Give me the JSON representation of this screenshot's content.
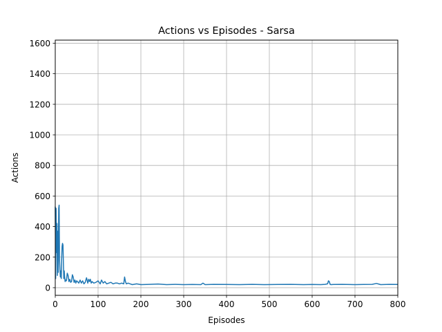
{
  "chart_data": {
    "type": "line",
    "title": "Actions vs Episodes - Sarsa",
    "xlabel": "Episodes",
    "ylabel": "Actions",
    "xlim": [
      0,
      800
    ],
    "ylim": [
      -50,
      1620
    ],
    "xticks": [
      0,
      100,
      200,
      300,
      400,
      500,
      600,
      700,
      800
    ],
    "yticks": [
      0,
      200,
      400,
      600,
      800,
      1000,
      1200,
      1400,
      1600
    ],
    "grid": true,
    "legend": "none",
    "series": [
      {
        "color": "#1f77b4",
        "x": [
          0,
          1,
          2,
          3,
          4,
          5,
          6,
          7,
          8,
          9,
          10,
          11,
          12,
          13,
          14,
          15,
          16,
          17,
          18,
          19,
          20,
          21,
          22,
          23,
          24,
          26,
          28,
          30,
          32,
          34,
          36,
          38,
          40,
          42,
          44,
          46,
          48,
          50,
          52,
          55,
          58,
          61,
          64,
          67,
          70,
          73,
          76,
          78,
          80,
          82,
          84,
          86,
          90,
          95,
          100,
          105,
          108,
          112,
          116,
          120,
          125,
          130,
          135,
          140,
          145,
          150,
          155,
          160,
          162,
          164,
          166,
          170,
          175,
          180,
          190,
          200,
          220,
          240,
          260,
          280,
          300,
          320,
          340,
          345,
          350,
          370,
          400,
          430,
          460,
          490,
          520,
          550,
          580,
          600,
          620,
          630,
          636,
          638,
          640,
          642,
          644,
          650,
          670,
          700,
          720,
          740,
          750,
          755,
          760,
          780,
          800
        ],
        "y": [
          530,
          60,
          520,
          230,
          420,
          80,
          370,
          100,
          520,
          540,
          180,
          120,
          70,
          110,
          60,
          190,
          270,
          290,
          280,
          160,
          60,
          110,
          70,
          40,
          50,
          45,
          95,
          80,
          40,
          55,
          35,
          40,
          85,
          70,
          35,
          50,
          30,
          45,
          40,
          30,
          50,
          30,
          45,
          25,
          35,
          65,
          30,
          55,
          40,
          55,
          30,
          40,
          30,
          35,
          45,
          25,
          50,
          30,
          40,
          25,
          30,
          35,
          25,
          30,
          30,
          25,
          30,
          25,
          70,
          40,
          25,
          30,
          25,
          20,
          25,
          20,
          22,
          24,
          20,
          22,
          20,
          21,
          20,
          30,
          20,
          22,
          21,
          20,
          22,
          20,
          21,
          22,
          20,
          21,
          20,
          22,
          25,
          45,
          40,
          22,
          20,
          21,
          22,
          20,
          21,
          22,
          28,
          24,
          20,
          22,
          21
        ]
      }
    ]
  }
}
